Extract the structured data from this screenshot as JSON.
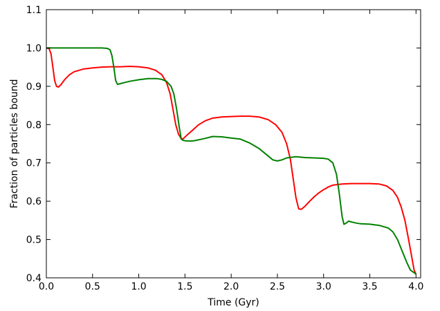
{
  "chart_data": {
    "type": "line",
    "title": "",
    "xlabel": "Time (Gyr)",
    "ylabel": "Fraction of particles bound",
    "xlim": [
      0.0,
      4.05
    ],
    "ylim": [
      0.4,
      1.1
    ],
    "xticks": [
      0.0,
      0.5,
      1.0,
      1.5,
      2.0,
      2.5,
      3.0,
      3.5,
      4.0
    ],
    "xtick_labels": [
      "0.0",
      "0.5",
      "1.0",
      "1.5",
      "2.0",
      "2.5",
      "3.0",
      "3.5",
      "4.0"
    ],
    "yticks": [
      0.4,
      0.5,
      0.6,
      0.7,
      0.8,
      0.9,
      1.0,
      1.1
    ],
    "ytick_labels": [
      "0.4",
      "0.5",
      "0.6",
      "0.7",
      "0.8",
      "0.9",
      "1.0",
      "1.1"
    ],
    "grid": false,
    "legend": "none",
    "series": [
      {
        "color": "#ff0000",
        "x": [
          0.0,
          0.03,
          0.05,
          0.07,
          0.09,
          0.11,
          0.13,
          0.16,
          0.2,
          0.25,
          0.3,
          0.4,
          0.5,
          0.6,
          0.7,
          0.8,
          0.9,
          1.0,
          1.1,
          1.18,
          1.25,
          1.3,
          1.34,
          1.37,
          1.4,
          1.43,
          1.46,
          1.48,
          1.52,
          1.58,
          1.65,
          1.72,
          1.8,
          1.9,
          2.0,
          2.1,
          2.2,
          2.3,
          2.4,
          2.48,
          2.55,
          2.6,
          2.64,
          2.67,
          2.7,
          2.73,
          2.76,
          2.8,
          2.85,
          2.9,
          2.95,
          3.0,
          3.05,
          3.1,
          3.2,
          3.3,
          3.4,
          3.5,
          3.6,
          3.68,
          3.75,
          3.8,
          3.84,
          3.88,
          3.92,
          3.95,
          3.98,
          4.0
        ],
        "y": [
          1.0,
          0.998,
          0.985,
          0.95,
          0.915,
          0.9,
          0.898,
          0.905,
          0.918,
          0.93,
          0.938,
          0.945,
          0.948,
          0.95,
          0.951,
          0.951,
          0.952,
          0.951,
          0.948,
          0.942,
          0.93,
          0.91,
          0.88,
          0.84,
          0.8,
          0.775,
          0.763,
          0.763,
          0.772,
          0.785,
          0.8,
          0.81,
          0.817,
          0.82,
          0.821,
          0.822,
          0.822,
          0.82,
          0.813,
          0.8,
          0.78,
          0.75,
          0.71,
          0.66,
          0.61,
          0.58,
          0.579,
          0.587,
          0.6,
          0.612,
          0.622,
          0.63,
          0.637,
          0.642,
          0.645,
          0.646,
          0.646,
          0.646,
          0.645,
          0.64,
          0.628,
          0.61,
          0.585,
          0.55,
          0.5,
          0.46,
          0.42,
          0.41
        ]
      },
      {
        "color": "#008000",
        "x": [
          0.0,
          0.2,
          0.4,
          0.6,
          0.66,
          0.69,
          0.71,
          0.73,
          0.75,
          0.77,
          0.8,
          0.85,
          0.9,
          1.0,
          1.1,
          1.2,
          1.25,
          1.3,
          1.35,
          1.38,
          1.41,
          1.44,
          1.46,
          1.48,
          1.5,
          1.55,
          1.6,
          1.7,
          1.8,
          1.9,
          2.0,
          2.1,
          2.2,
          2.3,
          2.35,
          2.4,
          2.45,
          2.5,
          2.55,
          2.6,
          2.7,
          2.8,
          2.9,
          3.0,
          3.05,
          3.1,
          3.14,
          3.17,
          3.2,
          3.22,
          3.24,
          3.27,
          3.3,
          3.35,
          3.4,
          3.5,
          3.6,
          3.7,
          3.75,
          3.8,
          3.85,
          3.9,
          3.94,
          3.97,
          4.0
        ],
        "y": [
          1.0,
          1.0,
          1.0,
          1.0,
          0.999,
          0.995,
          0.98,
          0.95,
          0.915,
          0.905,
          0.907,
          0.91,
          0.913,
          0.917,
          0.92,
          0.92,
          0.918,
          0.913,
          0.9,
          0.88,
          0.84,
          0.79,
          0.762,
          0.759,
          0.758,
          0.757,
          0.758,
          0.763,
          0.769,
          0.768,
          0.765,
          0.762,
          0.752,
          0.738,
          0.728,
          0.718,
          0.708,
          0.705,
          0.708,
          0.713,
          0.716,
          0.714,
          0.713,
          0.712,
          0.71,
          0.7,
          0.67,
          0.62,
          0.56,
          0.54,
          0.542,
          0.548,
          0.546,
          0.543,
          0.541,
          0.54,
          0.537,
          0.53,
          0.52,
          0.5,
          0.47,
          0.44,
          0.42,
          0.415,
          0.41
        ]
      }
    ]
  }
}
